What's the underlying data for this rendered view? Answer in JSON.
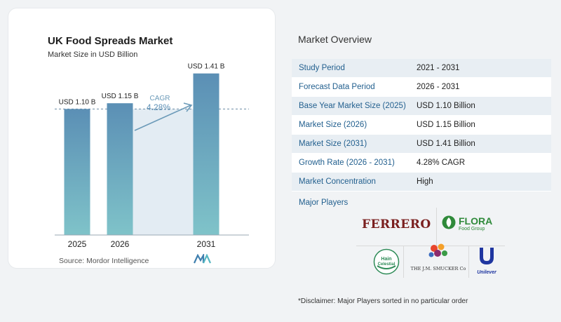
{
  "card": {
    "source": "Source: Mordor Intelligence"
  },
  "chart_data": {
    "type": "bar",
    "title": "UK Food Spreads Market",
    "subtitle": "Market Size in USD Billion",
    "categories": [
      "2025",
      "2026",
      "2031"
    ],
    "values": [
      1.1,
      1.15,
      1.41
    ],
    "data_labels": [
      "USD 1.10 B",
      "USD 1.15 B",
      "USD 1.41 B"
    ],
    "cagr_label": "CAGR",
    "cagr_value": "4.28%",
    "ylim": [
      0,
      1.6
    ],
    "grid": false,
    "bar_color": "#5b8fb5",
    "bar_color_light": "#7fc3c9"
  },
  "overview": {
    "title": "Market Overview",
    "rows": [
      {
        "label": "Study Period",
        "value": "2021 - 2031"
      },
      {
        "label": "Forecast Data Period",
        "value": "2026 - 2031"
      },
      {
        "label": "Base Year Market Size (2025)",
        "value": "USD 1.10 Billion"
      },
      {
        "label": "Market Size (2026)",
        "value": "USD 1.15 Billion"
      },
      {
        "label": "Market Size (2031)",
        "value": "USD 1.41 Billion"
      },
      {
        "label": "Growth Rate (2026 - 2031)",
        "value": "4.28% CAGR"
      },
      {
        "label": "Market Concentration",
        "value": "High"
      }
    ],
    "players_title": "Major Players",
    "players": {
      "ferrero": "FERRERO",
      "flora": "FLORA",
      "flora_sub": "Food Group",
      "hain_top": "Hain",
      "hain_bottom": "Celestial",
      "smucker": "THE J.M. SMUCKER Co",
      "unilever": "Unilever"
    }
  },
  "disclaimer": "*Disclaimer: Major Players sorted in no particular order"
}
